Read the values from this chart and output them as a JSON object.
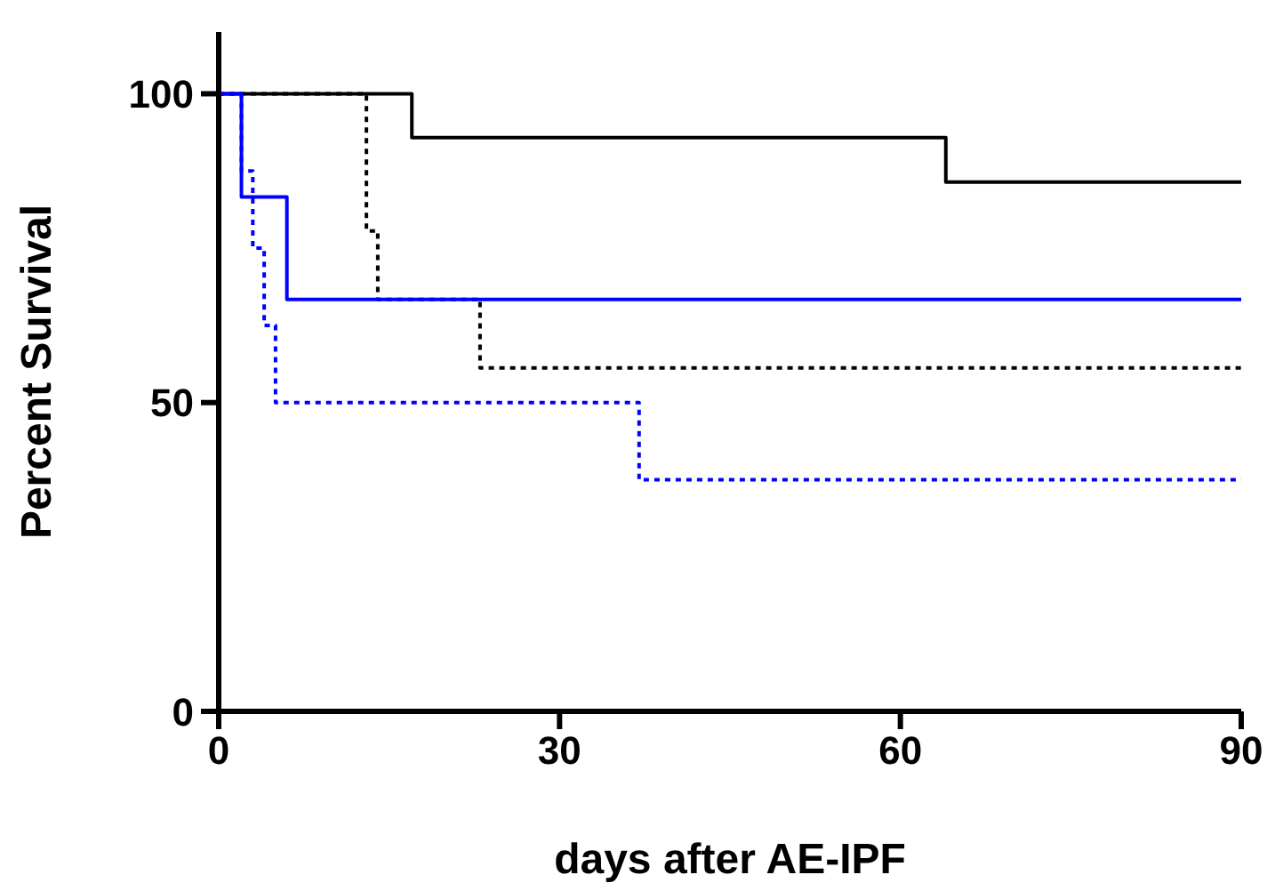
{
  "chart_data": {
    "type": "step",
    "xlabel": "days after AE-IPF",
    "ylabel": "Percent Survival",
    "xlim": [
      0,
      90
    ],
    "xticks": [
      0,
      30,
      60,
      90
    ],
    "ylim": [
      0,
      110
    ],
    "yticks": [
      0,
      50,
      100
    ],
    "grid": false,
    "legend": false,
    "marker": "none",
    "series": [
      {
        "color": "#000000",
        "line_style": "solid",
        "x": [
          0,
          17,
          64,
          90
        ],
        "values": [
          100,
          92.9,
          85.7,
          85.7
        ]
      },
      {
        "color": "#000000",
        "line_style": "dotted",
        "x": [
          0,
          13,
          14,
          23,
          90
        ],
        "values": [
          100,
          77.8,
          66.7,
          55.6,
          55.6
        ]
      },
      {
        "color": "#0000ff",
        "line_style": "solid",
        "x": [
          0,
          2,
          6,
          90
        ],
        "values": [
          100,
          83.3,
          66.7,
          66.7
        ]
      },
      {
        "color": "#0000ff",
        "line_style": "dotted",
        "x": [
          0,
          2,
          3,
          4,
          5,
          37,
          90
        ],
        "values": [
          100,
          87.5,
          75,
          62.5,
          50,
          37.5,
          37.5
        ]
      }
    ]
  }
}
